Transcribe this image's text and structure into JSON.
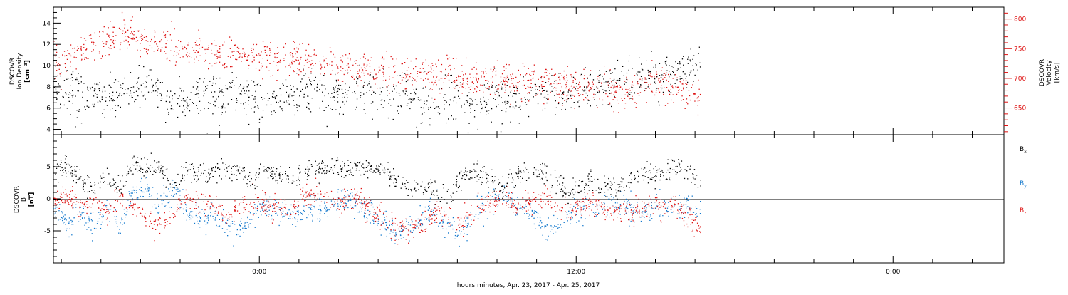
{
  "chart_data": [
    {
      "type": "scatter",
      "name": "plasma",
      "title": "",
      "xlabel": "",
      "ylabel_left": {
        "l1": "DSCOVR",
        "l2": "Ion Density",
        "l3": "[cm⁻³]"
      },
      "ylabel_right": {
        "l1": "DSCOVR",
        "l2": "Velocity",
        "l3": "[km/s]"
      },
      "x_range_hours": [
        0,
        36
      ],
      "ylim_left": [
        3.5,
        15.5
      ],
      "ylim_right": [
        605,
        820
      ],
      "yticks_left": [
        4,
        6,
        8,
        10,
        12,
        14
      ],
      "yticks_right": [
        650,
        700,
        750,
        800
      ],
      "colors": {
        "density": "#000000",
        "velocity": "#dd1111"
      },
      "series": [
        {
          "name": "Ion Density",
          "axis": "left",
          "x": [
            0.0,
            0.5,
            1.0,
            1.5,
            2.0,
            2.5,
            3.0,
            3.5,
            4.0,
            4.5,
            5.0,
            5.5,
            6.0,
            6.5,
            7.0,
            7.5,
            8.0,
            8.5,
            9.0,
            9.5,
            10.0,
            10.5,
            11.0,
            11.5,
            12.0,
            12.5,
            13.0,
            13.5,
            14.0,
            14.5,
            15.0,
            15.5,
            16.0,
            16.5,
            17.0,
            17.5,
            18.0,
            18.5,
            19.0,
            19.5,
            20.0,
            20.5,
            21.0,
            21.5,
            22.0,
            22.5,
            23.0,
            23.5,
            24.0,
            24.5
          ],
          "values": [
            8.2,
            7.8,
            7.5,
            7.2,
            7.0,
            7.4,
            7.8,
            8.2,
            7.6,
            7.0,
            6.8,
            7.2,
            7.0,
            6.8,
            7.2,
            6.8,
            6.6,
            7.0,
            7.4,
            7.8,
            7.6,
            7.2,
            7.6,
            7.9,
            7.6,
            7.2,
            7.0,
            6.8,
            6.4,
            6.2,
            6.6,
            6.8,
            6.4,
            6.8,
            7.2,
            6.8,
            7.4,
            7.0,
            7.8,
            7.2,
            7.6,
            7.8,
            8.2,
            8.6,
            8.2,
            8.8,
            9.0,
            9.4,
            9.6,
            9.8
          ],
          "spread": 1.0
        },
        {
          "name": "Velocity",
          "axis": "right",
          "x": [
            0.0,
            0.5,
            1.0,
            1.5,
            2.0,
            2.5,
            3.0,
            3.5,
            4.0,
            4.5,
            5.0,
            5.5,
            6.0,
            6.5,
            7.0,
            7.5,
            8.0,
            8.5,
            9.0,
            9.5,
            10.0,
            10.5,
            11.0,
            11.5,
            12.0,
            12.5,
            13.0,
            13.5,
            14.0,
            14.5,
            15.0,
            15.5,
            16.0,
            16.5,
            17.0,
            17.5,
            18.0,
            18.5,
            19.0,
            19.5,
            20.0,
            20.5,
            21.0,
            21.5,
            22.0,
            22.5,
            23.0,
            23.5,
            24.0,
            24.5
          ],
          "values": [
            725,
            735,
            745,
            755,
            765,
            768,
            772,
            760,
            758,
            752,
            748,
            745,
            742,
            738,
            740,
            736,
            733,
            731,
            730,
            728,
            725,
            722,
            718,
            716,
            715,
            712,
            710,
            708,
            706,
            705,
            704,
            702,
            700,
            699,
            698,
            696,
            694,
            692,
            690,
            688,
            686,
            684,
            682,
            680,
            682,
            690,
            692,
            688,
            680,
            665
          ],
          "spread": 14
        }
      ]
    },
    {
      "type": "scatter",
      "name": "magnetic",
      "title": "",
      "xlabel": "hours:minutes, Apr. 23, 2017 - Apr. 25, 2017",
      "ylabel_left": {
        "l1": "DSCOVR",
        "l2": "B",
        "l3": "[nT]"
      },
      "x_range_hours": [
        0,
        36
      ],
      "ylim": [
        -10,
        10
      ],
      "yticks": [
        -5,
        0,
        5
      ],
      "xticks": [
        {
          "hour": 7.8,
          "label": "0:00"
        },
        {
          "hour": 19.8,
          "label": "12:00"
        },
        {
          "hour": 31.8,
          "label": "0:00"
        }
      ],
      "colors": {
        "Bx": "#000000",
        "By": "#1177cc",
        "Bz": "#dd1111"
      },
      "legend": [
        {
          "key": "Bx",
          "label": "B",
          "sub": "x",
          "color": "#000000"
        },
        {
          "key": "By",
          "label": "B",
          "sub": "y",
          "color": "#1177cc"
        },
        {
          "key": "Bz",
          "label": "B",
          "sub": "z",
          "color": "#dd1111"
        }
      ],
      "series": [
        {
          "name": "Bx",
          "x": [
            0.0,
            0.5,
            1.0,
            1.5,
            2.0,
            2.5,
            3.0,
            3.5,
            4.0,
            4.5,
            5.0,
            5.5,
            6.0,
            6.5,
            7.0,
            7.5,
            8.0,
            8.5,
            9.0,
            9.5,
            10.0,
            10.5,
            11.0,
            11.5,
            12.0,
            12.5,
            13.0,
            13.5,
            14.0,
            14.5,
            15.0,
            15.5,
            16.0,
            16.5,
            17.0,
            17.5,
            18.0,
            18.5,
            19.0,
            19.5,
            20.0,
            20.5,
            21.0,
            21.5,
            22.0,
            22.5,
            23.0,
            23.5,
            24.0,
            24.5
          ],
          "values": [
            4.5,
            5.2,
            3.0,
            1.5,
            3.5,
            2.0,
            5.5,
            5.0,
            4.8,
            2.5,
            4.5,
            3.8,
            4.2,
            5.0,
            4.0,
            3.0,
            4.5,
            3.8,
            2.5,
            4.2,
            4.6,
            4.8,
            4.5,
            5.0,
            4.6,
            4.8,
            3.0,
            1.5,
            2.0,
            1.0,
            0.5,
            3.8,
            4.5,
            3.2,
            1.5,
            3.6,
            4.0,
            4.2,
            3.0,
            1.0,
            2.0,
            3.0,
            1.5,
            2.0,
            3.5,
            4.2,
            3.8,
            4.5,
            4.6,
            3.0
          ],
          "spread": 0.8
        },
        {
          "name": "By",
          "x": [
            0.0,
            0.5,
            1.0,
            1.5,
            2.0,
            2.5,
            3.0,
            3.5,
            4.0,
            4.5,
            5.0,
            5.5,
            6.0,
            6.5,
            7.0,
            7.5,
            8.0,
            8.5,
            9.0,
            9.5,
            10.0,
            10.5,
            11.0,
            11.5,
            12.0,
            12.5,
            13.0,
            13.5,
            14.0,
            14.5,
            15.0,
            15.5,
            16.0,
            16.5,
            17.0,
            17.5,
            18.0,
            18.5,
            19.0,
            19.5,
            20.0,
            20.5,
            21.0,
            21.5,
            22.0,
            22.5,
            23.0,
            23.5,
            24.0,
            24.5
          ],
          "values": [
            -1.0,
            -4.0,
            -2.0,
            -5.0,
            -1.5,
            -4.0,
            1.0,
            2.0,
            -1.0,
            1.5,
            -2.0,
            -3.0,
            -2.5,
            -4.0,
            -5.0,
            -3.0,
            -1.0,
            -2.0,
            -3.0,
            -1.0,
            -2.0,
            -1.5,
            0.5,
            -1.0,
            -2.0,
            -4.0,
            -5.0,
            -4.5,
            -3.0,
            -2.0,
            -4.5,
            -5.0,
            -2.0,
            -0.5,
            1.0,
            -1.0,
            -2.0,
            -4.0,
            -4.5,
            -3.0,
            -1.0,
            -2.0,
            -1.0,
            -0.5,
            -1.5,
            -2.0,
            -1.0,
            -1.5,
            -0.5,
            -2.5
          ],
          "spread": 1.0
        },
        {
          "name": "Bz",
          "x": [
            0.0,
            0.5,
            1.0,
            1.5,
            2.0,
            2.5,
            3.0,
            3.5,
            4.0,
            4.5,
            5.0,
            5.5,
            6.0,
            6.5,
            7.0,
            7.5,
            8.0,
            8.5,
            9.0,
            9.5,
            10.0,
            10.5,
            11.0,
            11.5,
            12.0,
            12.5,
            13.0,
            13.5,
            14.0,
            14.5,
            15.0,
            15.5,
            16.0,
            16.5,
            17.0,
            17.5,
            18.0,
            18.5,
            19.0,
            19.5,
            20.0,
            20.5,
            21.0,
            21.5,
            22.0,
            22.5,
            23.0,
            23.5,
            24.0,
            24.5
          ],
          "values": [
            -0.5,
            0.5,
            -1.0,
            -0.5,
            -2.0,
            0.5,
            -1.0,
            -3.0,
            -4.0,
            -2.0,
            0.5,
            -0.5,
            -1.0,
            -2.5,
            -1.0,
            -0.5,
            -1.0,
            -1.5,
            -2.0,
            0.5,
            1.0,
            -1.0,
            -0.5,
            0.5,
            -2.0,
            -3.0,
            -4.5,
            -5.0,
            -4.0,
            -2.0,
            -3.0,
            -3.5,
            -1.5,
            -0.5,
            0.0,
            -1.0,
            -0.5,
            0.0,
            -1.0,
            -2.0,
            -1.0,
            -0.5,
            -2.0,
            -1.5,
            -2.0,
            -1.0,
            -1.5,
            -0.5,
            -3.0,
            -4.5
          ],
          "spread": 0.9
        }
      ]
    }
  ]
}
